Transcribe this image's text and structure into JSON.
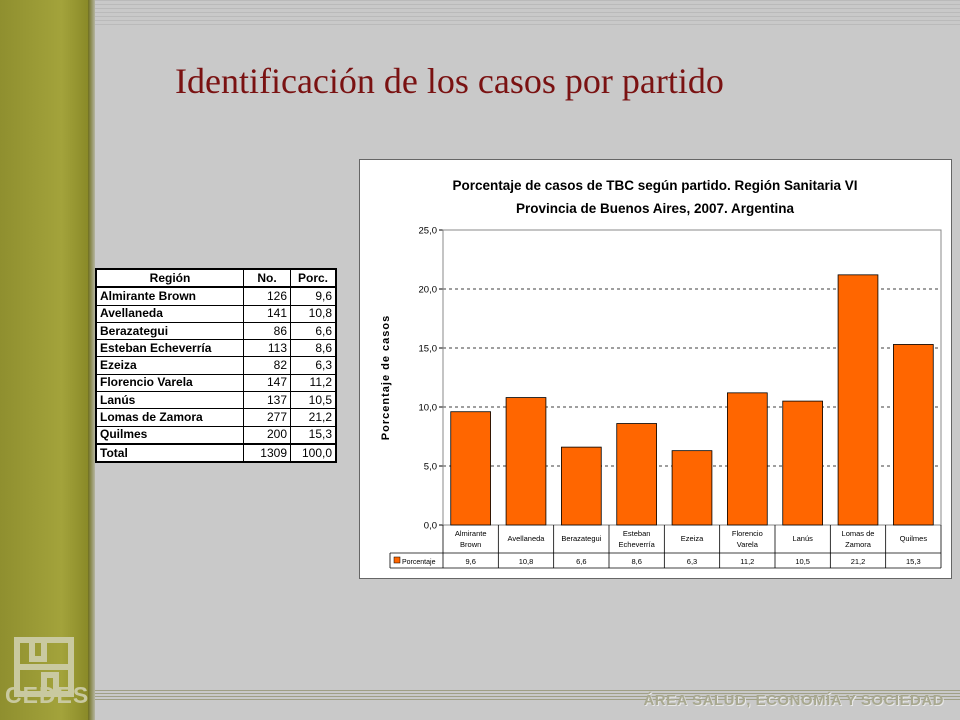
{
  "slide": {
    "title": "Identificación de los casos por partido",
    "footer": "ÁREA SALUD, ECONOMÍA Y SOCIEDAD",
    "logo_text": "CEDES",
    "colors": {
      "sidebar": "#9b9b34",
      "title": "#7a1212",
      "bar": "#ff6600",
      "background": "#c9c9c9"
    }
  },
  "table": {
    "headers": [
      "Región",
      "No.",
      "Porc."
    ],
    "rows": [
      {
        "region": "Almirante Brown",
        "no": "126",
        "porc": "9,6"
      },
      {
        "region": "Avellaneda",
        "no": "141",
        "porc": "10,8"
      },
      {
        "region": "Berazategui",
        "no": "86",
        "porc": "6,6"
      },
      {
        "region": "Esteban Echeverría",
        "no": "113",
        "porc": "8,6"
      },
      {
        "region": "Ezeiza",
        "no": "82",
        "porc": "6,3"
      },
      {
        "region": "Florencio Varela",
        "no": "147",
        "porc": "11,2"
      },
      {
        "region": "Lanús",
        "no": "137",
        "porc": "10,5"
      },
      {
        "region": "Lomas de Zamora",
        "no": "277",
        "porc": "21,2"
      },
      {
        "region": "Quilmes",
        "no": "200",
        "porc": "15,3"
      }
    ],
    "total": {
      "label": "Total",
      "no": "1309",
      "porc": "100,0"
    }
  },
  "chart_data": {
    "type": "bar",
    "title": "Porcentaje de casos de TBC según partido. Región Sanitaria VI",
    "subtitle": "Provincia de Buenos Aires, 2007. Argentina",
    "xlabel": "",
    "ylabel": "Porcentaje de casos",
    "ylim": [
      0,
      25
    ],
    "yticks": [
      "0,0",
      "5,0",
      "10,0",
      "15,0",
      "20,0",
      "25,0"
    ],
    "grid": "horizontal dashed",
    "categories": [
      [
        "Almirante",
        "Brown"
      ],
      [
        "Avellaneda"
      ],
      [
        "Berazategui"
      ],
      [
        "Esteban",
        "Echeverría"
      ],
      [
        "Ezeiza"
      ],
      [
        "Florencio",
        "Varela"
      ],
      [
        "Lanús"
      ],
      [
        "Lomas de",
        "Zamora"
      ],
      [
        "Quilmes"
      ]
    ],
    "series": [
      {
        "name": "Porcentaje",
        "color": "#ff6600",
        "values": [
          9.6,
          10.8,
          6.6,
          8.6,
          6.3,
          11.2,
          10.5,
          21.2,
          15.3
        ],
        "labels": [
          "9,6",
          "10,8",
          "6,6",
          "8,6",
          "6,3",
          "11,2",
          "10,5",
          "21,2",
          "15,3"
        ]
      }
    ],
    "legend": "data table below x-axis"
  }
}
